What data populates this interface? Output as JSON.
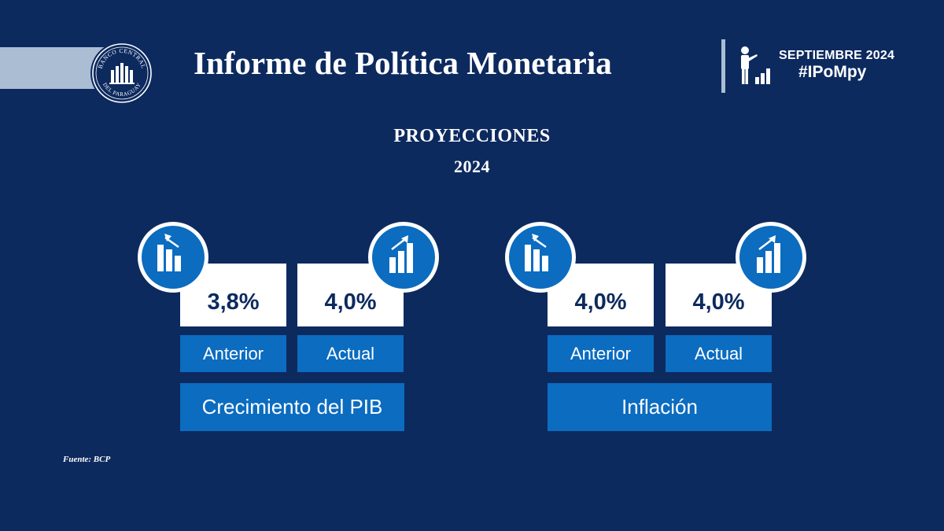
{
  "header": {
    "title": "Informe de Política Monetaria",
    "logo_text_top": "BANCO CENTRAL",
    "logo_text_bottom": "DEL PARAGUAY",
    "date": "SEPTIEMBRE 2024",
    "hashtag": "#IPoMpy"
  },
  "section": {
    "title": "PROYECCIONES",
    "year": "2024"
  },
  "groups": [
    {
      "category": "Crecimiento del PIB",
      "previous_value": "3,8%",
      "previous_label": "Anterior",
      "current_value": "4,0%",
      "current_label": "Actual",
      "previous_icon": "bars-down-icon",
      "current_icon": "bars-up-icon"
    },
    {
      "category": "Inflación",
      "previous_value": "4,0%",
      "previous_label": "Anterior",
      "current_value": "4,0%",
      "current_label": "Actual",
      "previous_icon": "bars-down-icon",
      "current_icon": "bars-up-icon"
    }
  ],
  "footer": {
    "source": "Fuente: BCP"
  },
  "colors": {
    "background": "#0d2a5f",
    "accent": "#0b6cc0",
    "light": "#aabdd3"
  }
}
